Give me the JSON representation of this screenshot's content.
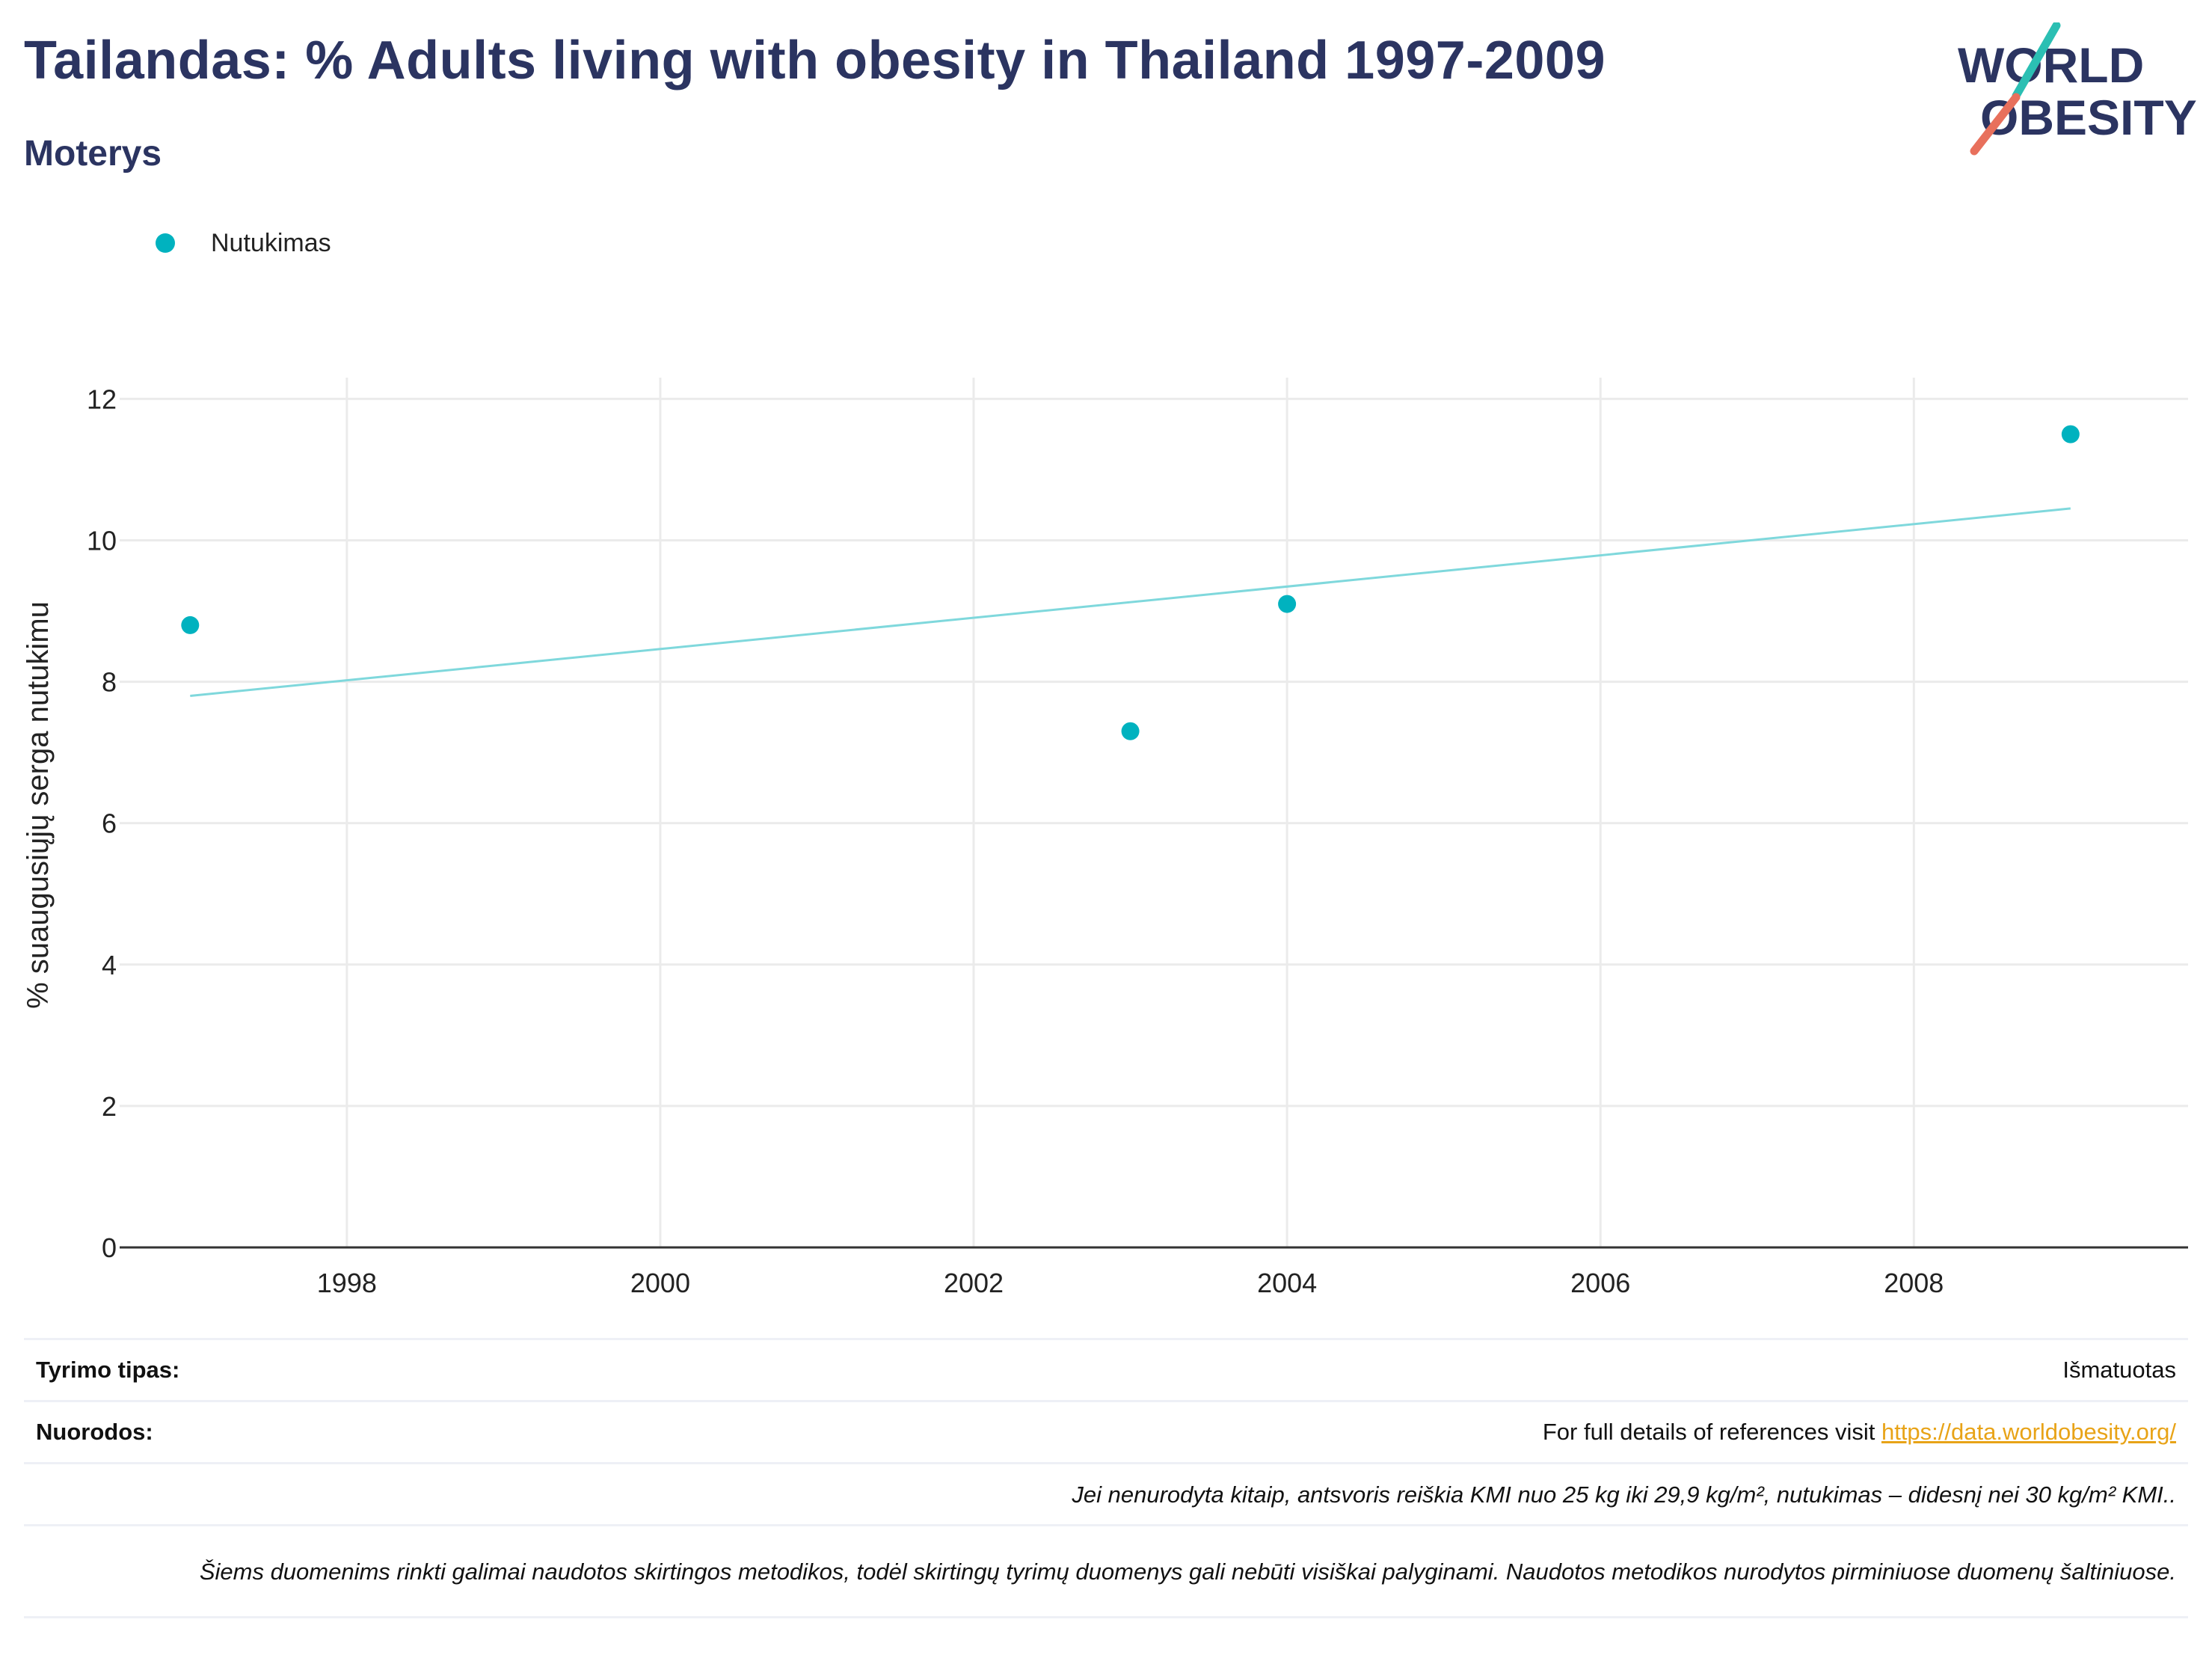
{
  "title": "Tailandas: % Adults living with obesity in Thailand 1997-2009",
  "subtitle": "Moterys",
  "logo": {
    "line1": "WORLD",
    "line2": "OBESITY"
  },
  "legend": {
    "label": "Nutukimas",
    "color": "#00b2bf"
  },
  "chart_data": {
    "type": "scatter",
    "ylabel": "% suaugusiųjų serga nutukimu",
    "xlabel": "",
    "xlim": [
      1996.55,
      2009.75
    ],
    "ylim": [
      0,
      12.3
    ],
    "xticks": [
      1998,
      2000,
      2002,
      2004,
      2006,
      2008
    ],
    "yticks": [
      0,
      2,
      4,
      6,
      8,
      10,
      12
    ],
    "grid": true,
    "series": [
      {
        "name": "Nutukimas",
        "color": "#00b2bf",
        "x": [
          1997,
          2003,
          2004,
          2009
        ],
        "y": [
          8.8,
          7.3,
          9.1,
          11.5
        ]
      }
    ],
    "trendline": {
      "color": "#7fd8dc",
      "x": [
        1997,
        2009
      ],
      "y": [
        7.8,
        10.45
      ]
    }
  },
  "footer": {
    "study_type_label": "Tyrimo tipas:",
    "study_type_value": "Išmatuotas",
    "references_label": "Nuorodos:",
    "references_text": "For full details of references visit ",
    "references_link": "https://data.worldobesity.org/",
    "bmi_note": "Jei nenurodyta kitaip, antsvoris reiškia KMI nuo 25 kg iki 29,9 kg/m², nutukimas – didesnį nei 30 kg/m² KMI..",
    "method_note": "Šiems duomenims rinkti galimai naudotos skirtingos metodikos, todėl skirtingų tyrimų duomenys gali nebūti visiškai palyginami. Naudotos metodikos nurodytos pirminiuose duomenų šaltiniuose."
  }
}
